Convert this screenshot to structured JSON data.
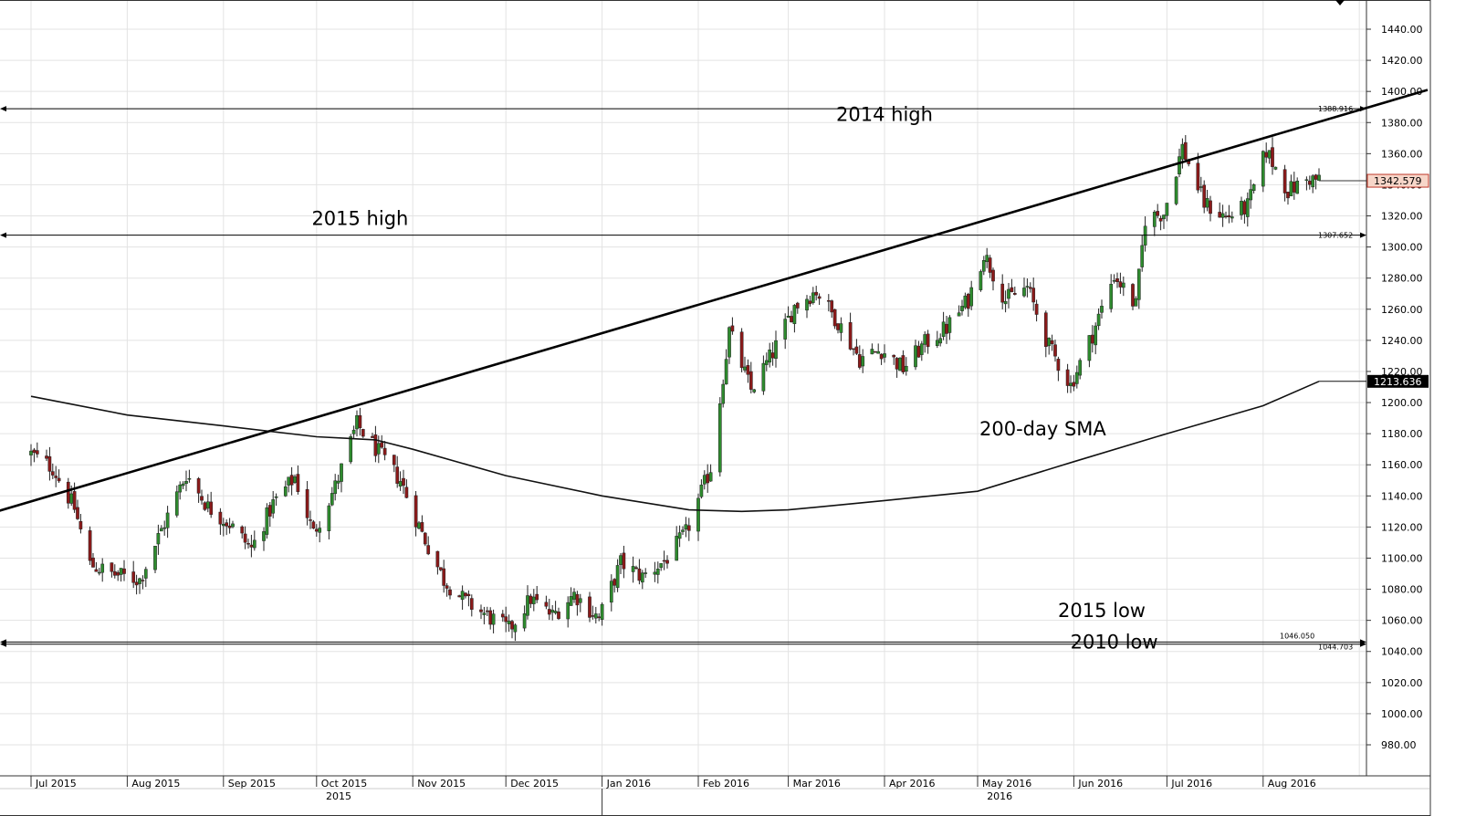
{
  "chart_data": {
    "type": "candlestick",
    "title": "",
    "xlabel": "",
    "ylabel": "",
    "ylim": [
      970,
      1460
    ],
    "grid": true,
    "y_ticks": [
      980,
      1000,
      1020,
      1040,
      1060,
      1080,
      1100,
      1120,
      1140,
      1160,
      1180,
      1200,
      1220,
      1240,
      1260,
      1280,
      1300,
      1320,
      1340,
      1360,
      1380,
      1400,
      1420,
      1440
    ],
    "y_tick_labels": [
      "980.00",
      "1000.00",
      "1020.00",
      "1040.00",
      "1060.00",
      "1080.00",
      "1100.00",
      "1120.00",
      "1140.00",
      "1160.00",
      "1180.00",
      "1200.00",
      "1220.00",
      "1240.00",
      "1260.00",
      "1280.00",
      "1300.00",
      "1320.00",
      "1340.00",
      "1360.00",
      "1380.00",
      "1400.00",
      "1420.00",
      "1440.00"
    ],
    "month_labels": [
      "Jul 2015",
      "Aug 2015",
      "Sep 2015",
      "Oct 2015",
      "Nov 2015",
      "Dec 2015",
      "Jan 2016",
      "Feb 2016",
      "Mar 2016",
      "Apr 2016",
      "May 2016",
      "Jun 2016",
      "Jul 2016",
      "Aug 2016"
    ],
    "year_labels": [
      "2015",
      "2016"
    ],
    "close_path": [
      [
        "2015-07-01",
        1167
      ],
      [
        "2015-07-08",
        1158
      ],
      [
        "2015-07-15",
        1132
      ],
      [
        "2015-07-20",
        1096
      ],
      [
        "2015-07-27",
        1090
      ],
      [
        "2015-08-05",
        1086
      ],
      [
        "2015-08-12",
        1118
      ],
      [
        "2015-08-20",
        1154
      ],
      [
        "2015-08-27",
        1133
      ],
      [
        "2015-09-03",
        1122
      ],
      [
        "2015-09-10",
        1106
      ],
      [
        "2015-09-17",
        1135
      ],
      [
        "2015-09-24",
        1152
      ],
      [
        "2015-09-30",
        1116
      ],
      [
        "2015-10-07",
        1146
      ],
      [
        "2015-10-14",
        1186
      ],
      [
        "2015-10-21",
        1168
      ],
      [
        "2015-10-28",
        1150
      ],
      [
        "2015-11-04",
        1116
      ],
      [
        "2015-11-11",
        1086
      ],
      [
        "2015-11-18",
        1072
      ],
      [
        "2015-11-25",
        1063
      ],
      [
        "2015-12-02",
        1054
      ],
      [
        "2015-12-09",
        1074
      ],
      [
        "2015-12-16",
        1063
      ],
      [
        "2015-12-23",
        1077
      ],
      [
        "2015-12-31",
        1061
      ],
      [
        "2016-01-07",
        1097
      ],
      [
        "2016-01-14",
        1088
      ],
      [
        "2016-01-21",
        1098
      ],
      [
        "2016-01-28",
        1116
      ],
      [
        "2016-02-05",
        1158
      ],
      [
        "2016-02-11",
        1246
      ],
      [
        "2016-02-18",
        1208
      ],
      [
        "2016-02-25",
        1232
      ],
      [
        "2016-03-03",
        1262
      ],
      [
        "2016-03-10",
        1272
      ],
      [
        "2016-03-17",
        1252
      ],
      [
        "2016-03-24",
        1228
      ],
      [
        "2016-03-31",
        1234
      ],
      [
        "2016-04-07",
        1222
      ],
      [
        "2016-04-14",
        1238
      ],
      [
        "2016-04-21",
        1248
      ],
      [
        "2016-04-28",
        1266
      ],
      [
        "2016-05-03",
        1296
      ],
      [
        "2016-05-10",
        1266
      ],
      [
        "2016-05-17",
        1274
      ],
      [
        "2016-05-24",
        1236
      ],
      [
        "2016-05-31",
        1211
      ],
      [
        "2016-06-07",
        1244
      ],
      [
        "2016-06-14",
        1282
      ],
      [
        "2016-06-21",
        1262
      ],
      [
        "2016-06-24",
        1318
      ],
      [
        "2016-06-30",
        1322
      ],
      [
        "2016-07-06",
        1364
      ],
      [
        "2016-07-13",
        1328
      ],
      [
        "2016-07-20",
        1319
      ],
      [
        "2016-07-27",
        1326
      ],
      [
        "2016-08-02",
        1362
      ],
      [
        "2016-08-09",
        1336
      ],
      [
        "2016-08-16",
        1344
      ],
      [
        "2016-08-19",
        1342.579
      ]
    ],
    "sma_200": [
      [
        "2015-07-01",
        1204
      ],
      [
        "2015-08-01",
        1192
      ],
      [
        "2015-09-01",
        1185
      ],
      [
        "2015-10-01",
        1178
      ],
      [
        "2015-10-20",
        1176
      ],
      [
        "2015-11-01",
        1170
      ],
      [
        "2015-12-01",
        1153
      ],
      [
        "2016-01-01",
        1140
      ],
      [
        "2016-01-29",
        1131
      ],
      [
        "2016-02-15",
        1130
      ],
      [
        "2016-03-01",
        1131
      ],
      [
        "2016-04-01",
        1137
      ],
      [
        "2016-05-01",
        1143
      ],
      [
        "2016-06-01",
        1162
      ],
      [
        "2016-07-01",
        1180
      ],
      [
        "2016-08-01",
        1198
      ],
      [
        "2016-08-19",
        1213.636
      ]
    ],
    "trendline": {
      "start": [
        "2015-06-20",
        1130
      ],
      "end": [
        "2016-09-23",
        1401
      ]
    },
    "levels": [
      {
        "name": "2014 high",
        "value": 1388.916,
        "label": "1388.916"
      },
      {
        "name": "2015 high",
        "value": 1307.652,
        "label": "1307.652"
      },
      {
        "name": "2015 low",
        "value": 1046.05,
        "label": "1046.050"
      },
      {
        "name": "2010 low",
        "value": 1044.703,
        "label": "1044.703"
      }
    ],
    "last_price": {
      "value": 1342.579,
      "label": "1342.579"
    },
    "sma_last": {
      "value": 1213.636,
      "label": "1213.636"
    },
    "annotations": [
      {
        "text": "2014 high",
        "x": "2016-04-01",
        "y": 1381
      },
      {
        "text": "2015 high",
        "x": "2015-10-15",
        "y": 1314
      },
      {
        "text": "200-day SMA",
        "x": "2016-05-22",
        "y": 1179
      },
      {
        "text": "2015 low",
        "x": "2016-06-10",
        "y": 1062
      },
      {
        "text": "2010 low",
        "x": "2016-06-14",
        "y": 1042
      }
    ]
  }
}
